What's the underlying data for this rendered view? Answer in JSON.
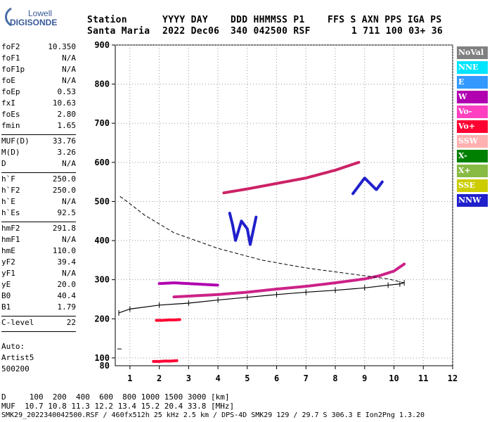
{
  "logo": {
    "top": "Lowell",
    "bottom": "DIGISONDE"
  },
  "header": {
    "labels": [
      "Station",
      "YYYY DAY",
      "DDD HHMMSS P1",
      "FFS S AXN PPS IGA PS"
    ],
    "values": [
      "Santa Maria",
      "2022 Dec06",
      "340 042500 RSF",
      "1 711 100 03+ 36"
    ]
  },
  "params": [
    {
      "name": "foF2",
      "value": "10.350"
    },
    {
      "name": "foF1",
      "value": "N/A"
    },
    {
      "name": "foF1p",
      "value": "N/A"
    },
    {
      "name": "foE",
      "value": "N/A"
    },
    {
      "name": "foEp",
      "value": "0.53"
    },
    {
      "name": "fxI",
      "value": "10.63"
    },
    {
      "name": "foEs",
      "value": "2.80"
    },
    {
      "name": "fmin",
      "value": "1.65"
    },
    {
      "sep": true
    },
    {
      "name": "MUF(D)",
      "value": "33.76"
    },
    {
      "name": "M(D)",
      "value": "3.26"
    },
    {
      "name": "D",
      "value": "N/A"
    },
    {
      "sep": true
    },
    {
      "name": "h`F",
      "value": "250.0"
    },
    {
      "name": "h`F2",
      "value": "250.0"
    },
    {
      "name": "h`E",
      "value": "N/A"
    },
    {
      "name": "h`Es",
      "value": "92.5"
    },
    {
      "sep": true
    },
    {
      "name": "hmF2",
      "value": "291.8"
    },
    {
      "name": "hmF1",
      "value": "N/A"
    },
    {
      "name": "hmE",
      "value": "110.0"
    },
    {
      "name": "yF2",
      "value": "39.4"
    },
    {
      "name": "yF1",
      "value": "N/A"
    },
    {
      "name": "yE",
      "value": "20.0"
    },
    {
      "name": "B0",
      "value": "40.4"
    },
    {
      "name": "B1",
      "value": "1.79"
    },
    {
      "sep": true
    },
    {
      "name": "C-level",
      "value": "22"
    },
    {
      "sep": true
    }
  ],
  "auto": {
    "line1": "Auto:",
    "line2": "Artist5",
    "line3": "500200"
  },
  "legend": [
    {
      "label": "NoVal",
      "color": "#808080"
    },
    {
      "label": "NNE",
      "color": "#00e5ff"
    },
    {
      "label": "E",
      "color": "#3399ff"
    },
    {
      "label": "W",
      "color": "#b000b0"
    },
    {
      "label": "Vo-",
      "color": "#ff40c0"
    },
    {
      "label": "Vo+",
      "color": "#ff0033"
    },
    {
      "label": "SSW",
      "color": "#ffb0b0"
    },
    {
      "label": "X-",
      "color": "#008000"
    },
    {
      "label": "X+",
      "color": "#88bb44"
    },
    {
      "label": "SSE",
      "color": "#cccc00"
    },
    {
      "label": "NNW",
      "color": "#2020cc"
    }
  ],
  "footer": {
    "d_line": "D     100  200  400  600  800 1000 1500 3000 [km]",
    "muf_line": "MUF  10.7 10.8 11.3 12.2 13.4 15.2 20.4 33.8 [MHz]",
    "file_line": "SMK29_2022340042500.RSF / 460fx512h 25 kHz 2.5 km / DPS-4D SMK29 129 / 29.7 S 306.3 E Ion2Png 1.3.20"
  },
  "chart_data": {
    "type": "scatter",
    "title": "",
    "xlabel": "",
    "ylabel": "",
    "xlim": [
      0.5,
      12
    ],
    "ylim": [
      80,
      900
    ],
    "xticks": [
      1,
      2,
      3,
      4,
      5,
      6,
      7,
      8,
      9,
      10,
      11,
      12
    ],
    "yticks": [
      100,
      200,
      300,
      400,
      500,
      600,
      700,
      800,
      900
    ],
    "grid": true,
    "legend_position": "right",
    "series": [
      {
        "name": "trace-1",
        "color": "#cc2288",
        "x": [
          2.5,
          3.0,
          4.0,
          5.0,
          6.0,
          7.0,
          8.0,
          9.0,
          9.5,
          10.0,
          10.35
        ],
        "y": [
          256,
          258,
          262,
          268,
          276,
          283,
          292,
          302,
          310,
          322,
          340
        ]
      },
      {
        "name": "trace-2",
        "color": "#cc2266",
        "x": [
          4.2,
          5.0,
          6.0,
          7.0,
          8.0,
          8.8
        ],
        "y": [
          522,
          532,
          546,
          560,
          580,
          600
        ]
      },
      {
        "name": "trace-3",
        "color": "#ff0033",
        "x": [
          1.9,
          2.1,
          2.3,
          2.5,
          2.7
        ],
        "y": [
          196,
          196,
          197,
          197,
          198
        ]
      },
      {
        "name": "trace-4",
        "color": "#ff0033",
        "x": [
          1.8,
          2.0,
          2.2,
          2.4,
          2.6
        ],
        "y": [
          91,
          91,
          92,
          92,
          93
        ]
      },
      {
        "name": "trace-5",
        "color": "#2020cc",
        "x": [
          4.4,
          4.5,
          4.6,
          4.8,
          5.0,
          5.1,
          5.3
        ],
        "y": [
          470,
          440,
          400,
          450,
          430,
          390,
          460
        ]
      },
      {
        "name": "trace-6",
        "color": "#2020cc",
        "x": [
          8.6,
          8.8,
          9.0,
          9.2,
          9.4,
          9.6
        ],
        "y": [
          520,
          540,
          560,
          545,
          530,
          550
        ]
      },
      {
        "name": "trace-7",
        "color": "#b000b0",
        "x": [
          2.0,
          2.5,
          3.0,
          3.5,
          4.0
        ],
        "y": [
          290,
          292,
          290,
          288,
          286
        ]
      }
    ],
    "profile": {
      "x": [
        0.62,
        1.0,
        2.0,
        3.0,
        4.0,
        5.0,
        6.0,
        7.0,
        8.0,
        9.0,
        9.8,
        10.2,
        10.35
      ],
      "y": [
        215,
        225,
        235,
        240,
        248,
        255,
        262,
        268,
        273,
        279,
        286,
        289,
        292
      ]
    },
    "profile_dashed": {
      "x": [
        10.35,
        9.8,
        8.5,
        7.0,
        5.5,
        4.0,
        2.5,
        1.5,
        0.9,
        0.62
      ],
      "y": [
        292,
        302,
        315,
        330,
        350,
        380,
        420,
        465,
        500,
        515
      ]
    },
    "dash_marker": {
      "x": [
        0.62
      ],
      "y": [
        123
      ]
    }
  }
}
